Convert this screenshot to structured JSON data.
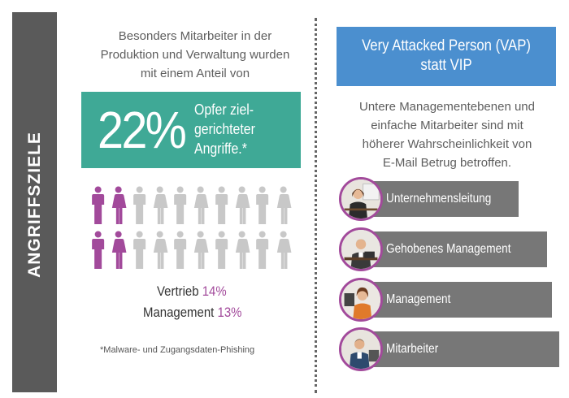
{
  "sidebar": {
    "label": "ANGRIFFSZIELE"
  },
  "left": {
    "intro": [
      "Besonders Mitarbeiter in der",
      "Produktion und Verwaltung wurden",
      "mit einem Anteil von"
    ],
    "stat": {
      "value": "22%",
      "text": [
        "Opfer ziel-",
        "gerichteter",
        "Angriffe.*"
      ]
    },
    "people": {
      "highlight_color": "#a24a9b",
      "neutral_color": "#c8c8c8",
      "rows": [
        {
          "total": 10,
          "highlighted": 2
        },
        {
          "total": 10,
          "highlighted": 2
        }
      ]
    },
    "legend": [
      {
        "label": "Vertrieb",
        "value": "14%"
      },
      {
        "label": "Management",
        "value": "13%"
      }
    ],
    "footnote": "*Malware- und Zugangsdaten-Phishing"
  },
  "right": {
    "vap": {
      "line1": "Very Attacked Person (VAP)",
      "line2": "statt VIP"
    },
    "description": [
      "Untere Managementebenen und",
      "einfache Mitarbeiter sind mit",
      "höherer Wahrscheinlichkeit von",
      "E-Mail Betrug betroffen."
    ],
    "levels": [
      {
        "label": "Unternehmensleitung",
        "icon": "executive-woman-icon"
      },
      {
        "label": "Gehobenes Management",
        "icon": "senior-manager-icon"
      },
      {
        "label": "Management",
        "icon": "manager-woman-icon"
      },
      {
        "label": "Mitarbeiter",
        "icon": "employee-icon"
      }
    ]
  },
  "colors": {
    "sidebar": "#5a5a5a",
    "teal": "#3fa996",
    "blue": "#4b8fcf",
    "purple": "#a24a9b",
    "level_bar": "#777777"
  }
}
